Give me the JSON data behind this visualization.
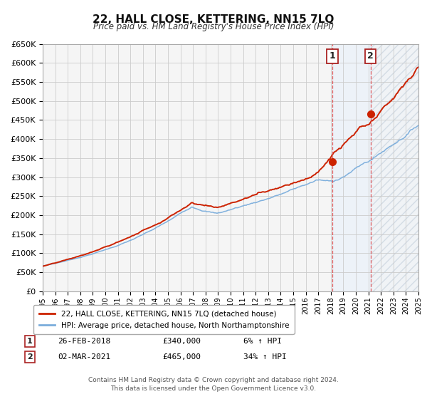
{
  "title": "22, HALL CLOSE, KETTERING, NN15 7LQ",
  "subtitle": "Price paid vs. HM Land Registry's House Price Index (HPI)",
  "ylim": [
    0,
    650000
  ],
  "yticks": [
    0,
    50000,
    100000,
    150000,
    200000,
    250000,
    300000,
    350000,
    400000,
    450000,
    500000,
    550000,
    600000,
    650000
  ],
  "xlim_start": 1995,
  "xlim_end": 2025,
  "hpi_color": "#7aaddc",
  "price_color": "#cc2200",
  "marker_color": "#cc2200",
  "vline_color": "#dd4444",
  "shade_color": "#ddeeff",
  "grid_color": "#cccccc",
  "bg_color": "#f5f5f5",
  "sale1_date": 2018.13,
  "sale1_price": 340000,
  "sale1_label": "26-FEB-2018",
  "sale1_pct": "6% ↑ HPI",
  "sale2_date": 2021.17,
  "sale2_price": 465000,
  "sale2_label": "02-MAR-2021",
  "sale2_pct": "34% ↑ HPI",
  "legend_line1": "22, HALL CLOSE, KETTERING, NN15 7LQ (detached house)",
  "legend_line2": "HPI: Average price, detached house, North Northamptonshire",
  "footnote1": "Contains HM Land Registry data © Crown copyright and database right 2024.",
  "footnote2": "This data is licensed under the Open Government Licence v3.0."
}
